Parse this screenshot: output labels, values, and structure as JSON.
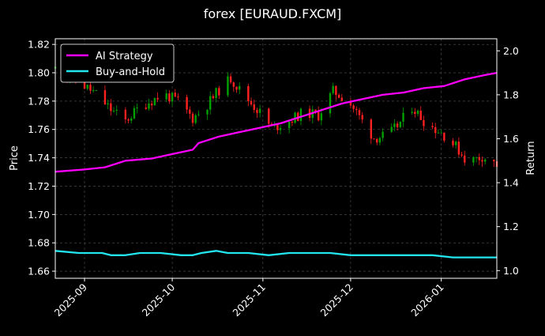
{
  "chart_data": {
    "type": "line",
    "title": "forex [EURAUD.FXCM]",
    "ylabel": "Price",
    "y2label": "Return",
    "ylim": [
      1.655,
      1.824
    ],
    "y2lim": [
      0.965,
      2.055
    ],
    "yticks": [
      1.66,
      1.68,
      1.7,
      1.72,
      1.74,
      1.76,
      1.78,
      1.8,
      1.82
    ],
    "ytick_labels": [
      "1.66",
      "1.68",
      "1.70",
      "1.72",
      "1.74",
      "1.76",
      "1.78",
      "1.80",
      "1.82"
    ],
    "y2ticks": [
      1.0,
      1.2,
      1.4,
      1.6,
      1.8,
      2.0
    ],
    "y2tick_labels": [
      "1.0",
      "1.2",
      "1.4",
      "1.6",
      "1.8",
      "2.0"
    ],
    "xlim": [
      "2025-08-22",
      "2026-01-20"
    ],
    "xticks": [
      "2025-09-01",
      "2025-10-01",
      "2025-11-01",
      "2025-12-01",
      "2026-01-01"
    ],
    "xtick_labels": [
      "2025-09",
      "2025-10",
      "2025-11",
      "2025-12",
      "2026-01"
    ],
    "grid": true,
    "legend_position": "top-left",
    "colors": {
      "background": "#000000",
      "up_candle": "#00a000",
      "down_candle": "#ff2020",
      "grid": "#555555"
    },
    "candles": {
      "anchors": [
        [
          "2025-08-22",
          1.803
        ],
        [
          "2025-08-29",
          1.795
        ],
        [
          "2025-09-05",
          1.785
        ],
        [
          "2025-09-10",
          1.774
        ],
        [
          "2025-09-15",
          1.766
        ],
        [
          "2025-09-20",
          1.776
        ],
        [
          "2025-09-28",
          1.785
        ],
        [
          "2025-10-03",
          1.78
        ],
        [
          "2025-10-08",
          1.768
        ],
        [
          "2025-10-12",
          1.775
        ],
        [
          "2025-10-17",
          1.788
        ],
        [
          "2025-10-21",
          1.796
        ],
        [
          "2025-10-26",
          1.783
        ],
        [
          "2025-10-31",
          1.772
        ],
        [
          "2025-11-04",
          1.761
        ],
        [
          "2025-11-09",
          1.765
        ],
        [
          "2025-11-15",
          1.772
        ],
        [
          "2025-11-20",
          1.77
        ],
        [
          "2025-11-25",
          1.787
        ],
        [
          "2025-11-30",
          1.781
        ],
        [
          "2025-12-05",
          1.766
        ],
        [
          "2025-12-09",
          1.754
        ],
        [
          "2025-12-14",
          1.756
        ],
        [
          "2025-12-18",
          1.765
        ],
        [
          "2025-12-22",
          1.776
        ],
        [
          "2025-12-27",
          1.764
        ],
        [
          "2026-01-01",
          1.758
        ],
        [
          "2026-01-06",
          1.748
        ],
        [
          "2026-01-10",
          1.737
        ],
        [
          "2026-01-15",
          1.741
        ],
        [
          "2026-01-20",
          1.735
        ]
      ]
    },
    "series": [
      {
        "name": "AI Strategy",
        "axis": "right",
        "color": "#ff00ff",
        "points": [
          [
            "2025-08-22",
            1.45
          ],
          [
            "2025-09-01",
            1.46
          ],
          [
            "2025-09-08",
            1.47
          ],
          [
            "2025-09-15",
            1.5
          ],
          [
            "2025-09-24",
            1.51
          ],
          [
            "2025-10-01",
            1.53
          ],
          [
            "2025-10-08",
            1.55
          ],
          [
            "2025-10-10",
            1.58
          ],
          [
            "2025-10-17",
            1.61
          ],
          [
            "2025-10-24",
            1.63
          ],
          [
            "2025-10-31",
            1.65
          ],
          [
            "2025-11-07",
            1.67
          ],
          [
            "2025-11-14",
            1.7
          ],
          [
            "2025-11-21",
            1.73
          ],
          [
            "2025-11-28",
            1.76
          ],
          [
            "2025-12-05",
            1.78
          ],
          [
            "2025-12-12",
            1.8
          ],
          [
            "2025-12-19",
            1.81
          ],
          [
            "2025-12-26",
            1.83
          ],
          [
            "2026-01-02",
            1.84
          ],
          [
            "2026-01-09",
            1.87
          ],
          [
            "2026-01-16",
            1.89
          ],
          [
            "2026-01-20",
            1.9
          ]
        ]
      },
      {
        "name": "Buy-and-Hold",
        "axis": "right",
        "color": "#22e5f0",
        "points": [
          [
            "2025-08-22",
            1.09
          ],
          [
            "2025-08-30",
            1.08
          ],
          [
            "2025-09-07",
            1.08
          ],
          [
            "2025-09-10",
            1.07
          ],
          [
            "2025-09-15",
            1.07
          ],
          [
            "2025-09-20",
            1.08
          ],
          [
            "2025-09-27",
            1.08
          ],
          [
            "2025-10-04",
            1.07
          ],
          [
            "2025-10-08",
            1.07
          ],
          [
            "2025-10-11",
            1.08
          ],
          [
            "2025-10-16",
            1.09
          ],
          [
            "2025-10-20",
            1.08
          ],
          [
            "2025-10-27",
            1.08
          ],
          [
            "2025-11-03",
            1.07
          ],
          [
            "2025-11-10",
            1.08
          ],
          [
            "2025-11-17",
            1.08
          ],
          [
            "2025-11-24",
            1.08
          ],
          [
            "2025-12-01",
            1.07
          ],
          [
            "2025-12-08",
            1.07
          ],
          [
            "2025-12-15",
            1.07
          ],
          [
            "2025-12-22",
            1.07
          ],
          [
            "2025-12-29",
            1.07
          ],
          [
            "2026-01-05",
            1.06
          ],
          [
            "2026-01-10",
            1.06
          ],
          [
            "2026-01-15",
            1.06
          ],
          [
            "2026-01-20",
            1.06
          ]
        ]
      }
    ]
  }
}
